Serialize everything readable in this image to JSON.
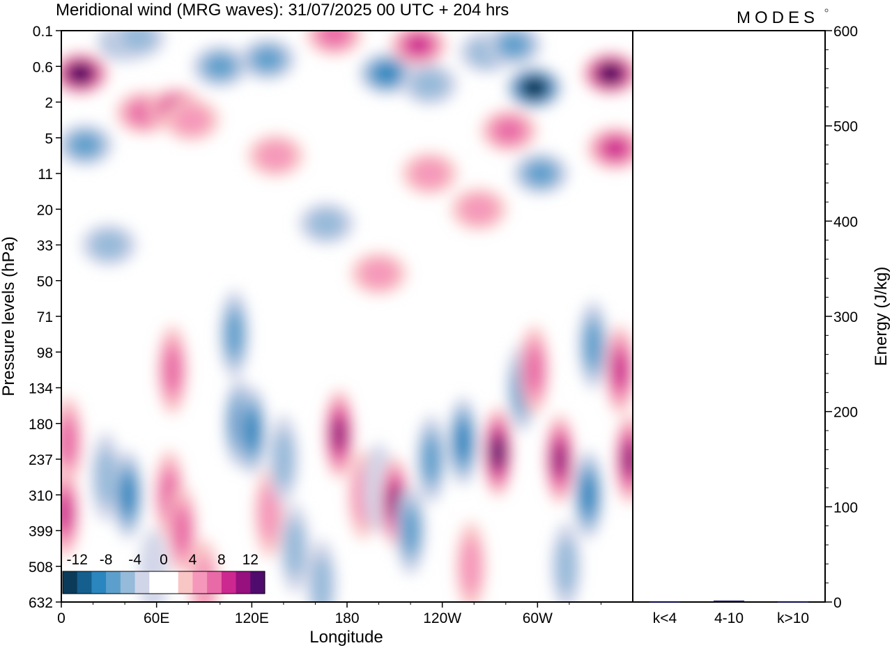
{
  "header": {
    "title": "Meridional wind (MRG waves):  31/07/2025  00 UTC  + 204 hrs",
    "logo": "MODES"
  },
  "chart_data": [
    {
      "type": "heatmap",
      "title": "Meridional wind (MRG waves):  31/07/2025  00 UTC  + 204 hrs",
      "xlabel": "Longitude",
      "ylabel": "Pressure levels (hPa)",
      "x_ticks": [
        "0",
        "60E",
        "120E",
        "180",
        "120W",
        "60W"
      ],
      "x_tick_degrees": [
        0,
        60,
        120,
        180,
        240,
        300
      ],
      "x_range": [
        0,
        360
      ],
      "y_levels": [
        "0.1",
        "0.6",
        "2",
        "5",
        "11",
        "20",
        "33",
        "50",
        "71",
        "98",
        "134",
        "180",
        "237",
        "310",
        "399",
        "508",
        "632"
      ],
      "colorbar": {
        "labels": [
          "-12",
          "-8",
          "-4",
          "0",
          "4",
          "8",
          "12"
        ],
        "levels": [
          -14,
          -12,
          -10,
          -8,
          -6,
          -4,
          -2,
          2,
          4,
          6,
          8,
          10,
          12,
          14
        ],
        "colors": [
          "#0c3b5a",
          "#155f8e",
          "#2b86bf",
          "#5d9fcc",
          "#96bad9",
          "#d1d5e8",
          "#ffffff",
          "#ffffff",
          "#f9c6c6",
          "#f597ba",
          "#e86aa6",
          "#cd2890",
          "#96107e",
          "#500c6c"
        ]
      },
      "cells": [
        {
          "lon": 12,
          "lev": 1.2,
          "v": 14
        },
        {
          "lon": 40,
          "lev": 0.3,
          "v": -6
        },
        {
          "lon": 52,
          "lev": 2.3,
          "v": 6
        },
        {
          "lon": 72,
          "lev": 2.2,
          "v": 7
        },
        {
          "lon": 82,
          "lev": 2.5,
          "v": 4
        },
        {
          "lon": 100,
          "lev": 1.0,
          "v": -5
        },
        {
          "lon": 130,
          "lev": 0.8,
          "v": -6
        },
        {
          "lon": 172,
          "lev": 0.1,
          "v": 5
        },
        {
          "lon": 205,
          "lev": 1.2,
          "v": -8
        },
        {
          "lon": 225,
          "lev": 0.4,
          "v": 7
        },
        {
          "lon": 232,
          "lev": 1.5,
          "v": -3
        },
        {
          "lon": 268,
          "lev": 0.6,
          "v": -4
        },
        {
          "lon": 285,
          "lev": 0.4,
          "v": -6
        },
        {
          "lon": 298,
          "lev": 1.6,
          "v": -14
        },
        {
          "lon": 302,
          "lev": 4.0,
          "v": -6
        },
        {
          "lon": 282,
          "lev": 2.8,
          "v": 5
        },
        {
          "lon": 346,
          "lev": 1.2,
          "v": 14
        },
        {
          "lon": 349,
          "lev": 3.3,
          "v": 8
        },
        {
          "lon": 15,
          "lev": 3.2,
          "v": -5
        },
        {
          "lon": 135,
          "lev": 3.5,
          "v": 3
        },
        {
          "lon": 232,
          "lev": 4.0,
          "v": 3
        },
        {
          "lon": 263,
          "lev": 5.0,
          "v": 4
        },
        {
          "lon": 167,
          "lev": 5.4,
          "v": -3
        },
        {
          "lon": 30,
          "lev": 6.0,
          "v": -3
        },
        {
          "lon": 200,
          "lev": 6.8,
          "v": 3
        },
        {
          "lon": 48,
          "lev": 0.2,
          "v": -4
        },
        {
          "lon": 4,
          "lev": 11.5,
          "v": 6
        },
        {
          "lon": 2,
          "lev": 13.5,
          "v": 8
        },
        {
          "lon": 70,
          "lev": 9.5,
          "v": 5
        },
        {
          "lon": 28,
          "lev": 12.5,
          "v": -4
        },
        {
          "lon": 42,
          "lev": 13.0,
          "v": -7
        },
        {
          "lon": 68,
          "lev": 13.0,
          "v": 6
        },
        {
          "lon": 76,
          "lev": 14.0,
          "v": 5
        },
        {
          "lon": 112,
          "lev": 11.0,
          "v": -7
        },
        {
          "lon": 120,
          "lev": 11.2,
          "v": -8
        },
        {
          "lon": 109,
          "lev": 8.5,
          "v": -5
        },
        {
          "lon": 131,
          "lev": 13.5,
          "v": 3
        },
        {
          "lon": 147,
          "lev": 14.5,
          "v": -4
        },
        {
          "lon": 175,
          "lev": 11.3,
          "v": 9
        },
        {
          "lon": 190,
          "lev": 13.0,
          "v": 3
        },
        {
          "lon": 200,
          "lev": 12.8,
          "v": -2
        },
        {
          "lon": 210,
          "lev": 13.2,
          "v": 9
        },
        {
          "lon": 220,
          "lev": 14.0,
          "v": -6
        },
        {
          "lon": 233,
          "lev": 12.0,
          "v": -6
        },
        {
          "lon": 253,
          "lev": 11.5,
          "v": -8
        },
        {
          "lon": 275,
          "lev": 11.8,
          "v": 11
        },
        {
          "lon": 290,
          "lev": 10.0,
          "v": -5
        },
        {
          "lon": 298,
          "lev": 9.5,
          "v": 6
        },
        {
          "lon": 314,
          "lev": 12.0,
          "v": 9
        },
        {
          "lon": 332,
          "lev": 13.0,
          "v": -8
        },
        {
          "lon": 335,
          "lev": 8.8,
          "v": -6
        },
        {
          "lon": 352,
          "lev": 9.5,
          "v": 7
        },
        {
          "lon": 358,
          "lev": 12.0,
          "v": 9
        },
        {
          "lon": 318,
          "lev": 15.0,
          "v": -3
        },
        {
          "lon": 258,
          "lev": 15.0,
          "v": 4
        },
        {
          "lon": 164,
          "lev": 15.5,
          "v": -3
        },
        {
          "lon": 90,
          "lev": 15.5,
          "v": 4
        },
        {
          "lon": 140,
          "lev": 12.0,
          "v": -3
        },
        {
          "lon": 58,
          "lev": 15.2,
          "v": -2
        }
      ]
    },
    {
      "type": "bar",
      "ylabel": "Energy (J/kg)",
      "categories": [
        "k<4",
        "4-10",
        "k>10"
      ],
      "values": [
        0.3,
        1.5,
        0.4
      ],
      "ylim": [
        0,
        600
      ],
      "y_ticks": [
        0,
        100,
        200,
        300,
        400,
        500,
        600
      ],
      "bar_color": "#14145a"
    }
  ]
}
